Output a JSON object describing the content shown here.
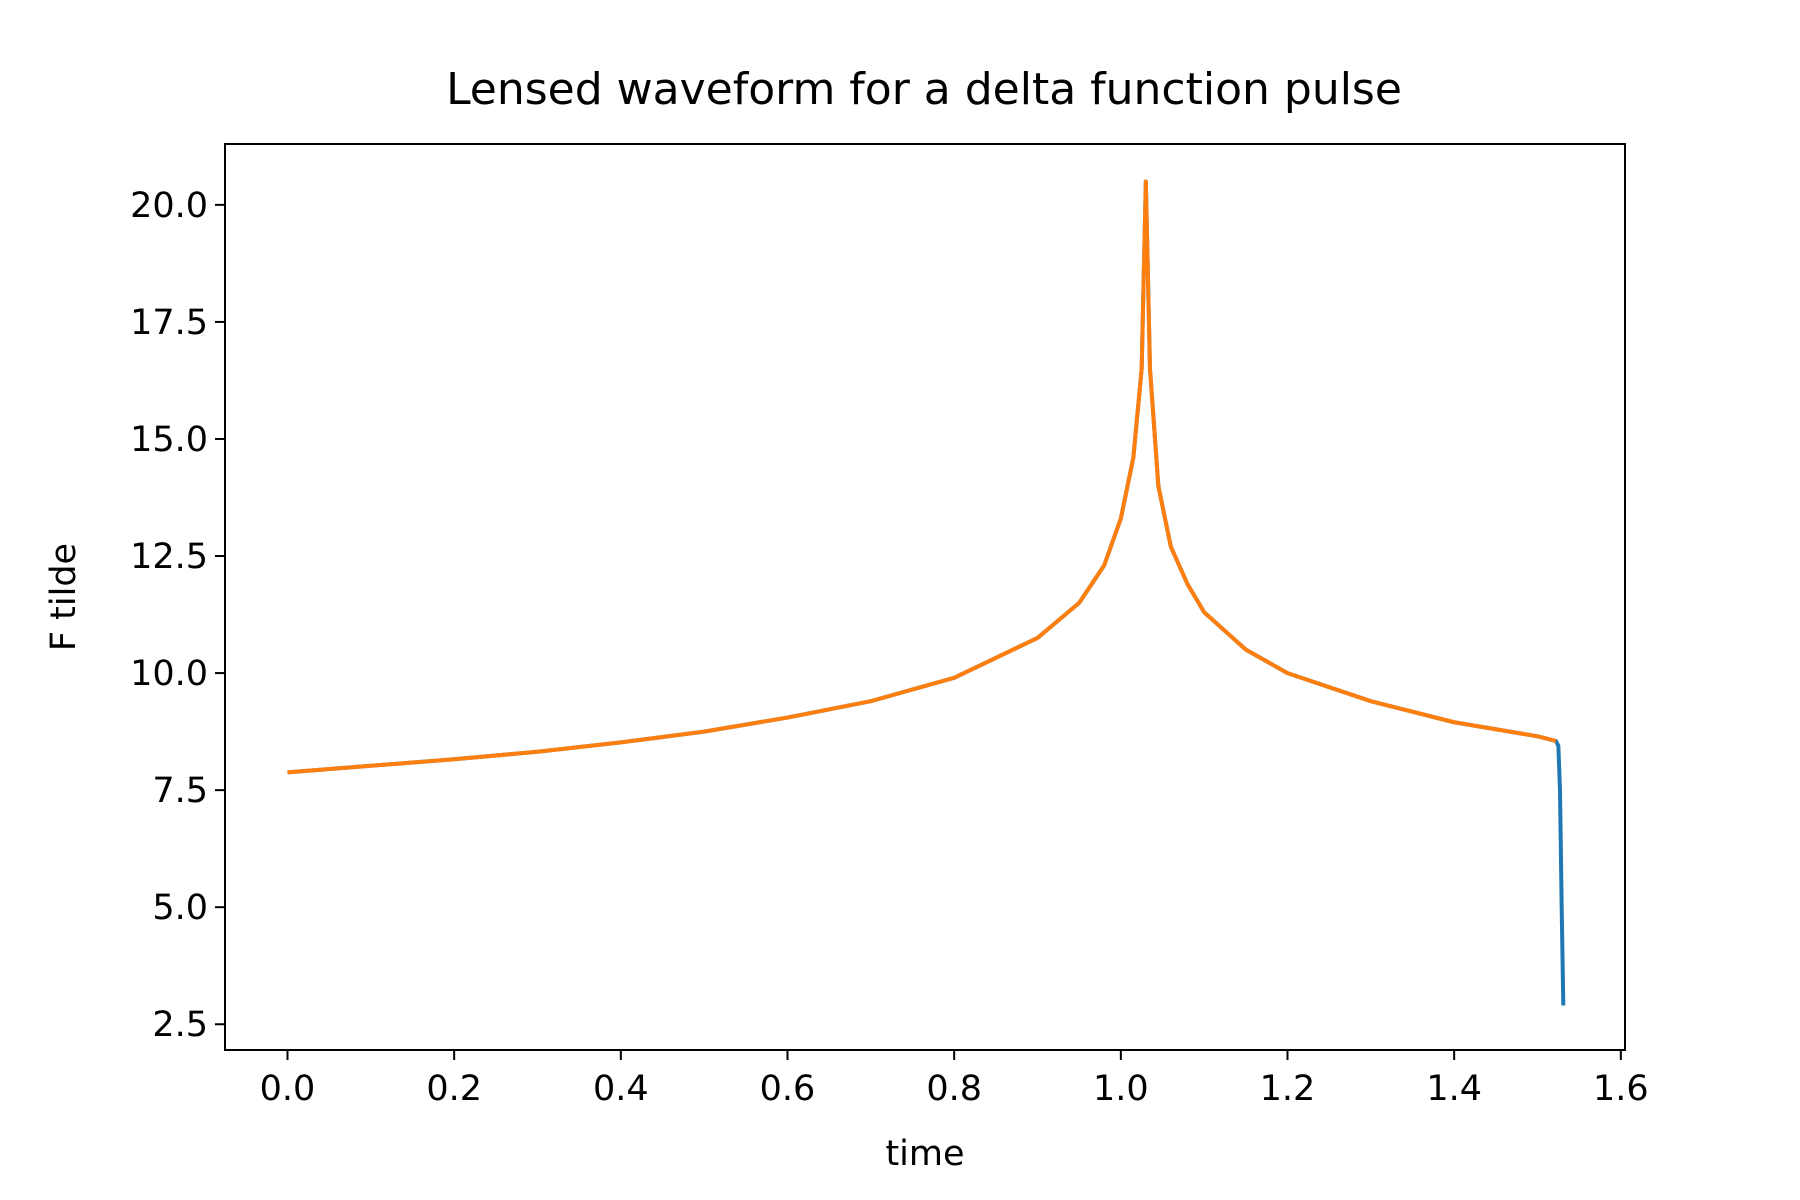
{
  "chart_data": {
    "type": "line",
    "title": "Lensed waveform for a delta function pulse",
    "xlabel": "time",
    "ylabel": "F tilde",
    "xlim": [
      -0.075,
      1.605
    ],
    "ylim": [
      1.95,
      21.3
    ],
    "grid": false,
    "xticks": [
      0.0,
      0.2,
      0.4,
      0.6,
      0.8,
      1.0,
      1.2,
      1.4,
      1.6
    ],
    "yticks": [
      2.5,
      5.0,
      7.5,
      10.0,
      12.5,
      15.0,
      17.5,
      20.0
    ],
    "xtick_labels": [
      "0.0",
      "0.2",
      "0.4",
      "0.6",
      "0.8",
      "1.0",
      "1.2",
      "1.4",
      "1.6"
    ],
    "ytick_labels": [
      "2.5",
      "5.0",
      "7.5",
      "10.0",
      "12.5",
      "15.0",
      "17.5",
      "20.0"
    ],
    "series": [
      {
        "color": "#1f77b4",
        "x": [
          0.0,
          0.1,
          0.2,
          0.3,
          0.4,
          0.5,
          0.6,
          0.7,
          0.8,
          0.9,
          0.95,
          0.98,
          1.0,
          1.015,
          1.025,
          1.03,
          1.035,
          1.045,
          1.06,
          1.08,
          1.1,
          1.15,
          1.2,
          1.3,
          1.4,
          1.5,
          1.522,
          1.525,
          1.527,
          1.529,
          1.531
        ],
        "y": [
          7.88,
          8.02,
          8.16,
          8.32,
          8.52,
          8.75,
          9.05,
          9.4,
          9.9,
          10.75,
          11.5,
          12.3,
          13.3,
          14.6,
          16.5,
          20.5,
          16.5,
          14.0,
          12.7,
          11.9,
          11.3,
          10.5,
          10.0,
          9.4,
          8.95,
          8.65,
          8.55,
          8.45,
          7.5,
          5.0,
          2.9
        ]
      },
      {
        "color": "#ff7f0e",
        "x": [
          0.0,
          0.1,
          0.2,
          0.3,
          0.4,
          0.5,
          0.6,
          0.7,
          0.8,
          0.9,
          0.95,
          0.98,
          1.0,
          1.015,
          1.025,
          1.03,
          1.035,
          1.045,
          1.06,
          1.08,
          1.1,
          1.15,
          1.2,
          1.3,
          1.4,
          1.5,
          1.522
        ],
        "y": [
          7.88,
          8.02,
          8.16,
          8.32,
          8.52,
          8.75,
          9.05,
          9.4,
          9.9,
          10.75,
          11.5,
          12.3,
          13.3,
          14.6,
          16.5,
          20.5,
          16.5,
          14.0,
          12.7,
          11.9,
          11.3,
          10.5,
          10.0,
          9.4,
          8.95,
          8.65,
          8.55
        ]
      }
    ]
  }
}
